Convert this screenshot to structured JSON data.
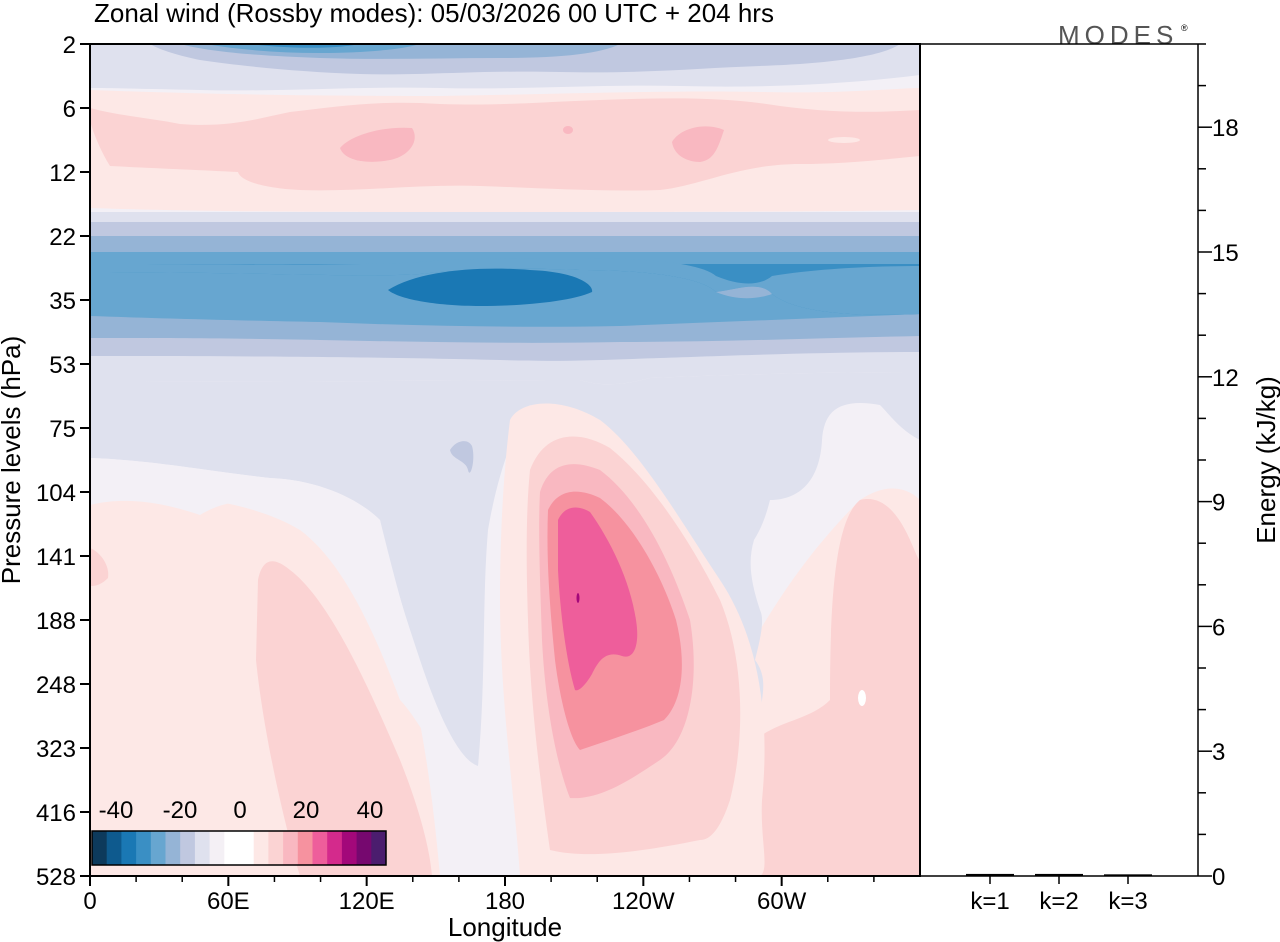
{
  "chart_data": {
    "type": "heatmap",
    "title": "Zonal wind (Rossby modes):  05/03/2026  00 UTC  + 204 hrs",
    "logo": "MODES",
    "logo_mark": "®",
    "xlabel": "Longitude",
    "ylabel": "Pressure levels (hPa)",
    "y2label": "Energy (kJ/kg)",
    "x_ticks": [
      "0",
      "60E",
      "120E",
      "180",
      "120W",
      "60W"
    ],
    "y_ticks": [
      "2",
      "6",
      "12",
      "22",
      "35",
      "53",
      "75",
      "104",
      "141",
      "188",
      "248",
      "323",
      "416",
      "528"
    ],
    "energy_ticks": [
      "0",
      "3",
      "6",
      "9",
      "12",
      "15",
      "18"
    ],
    "energy_range": [
      0,
      20
    ],
    "energy_bars": {
      "categories": [
        "k=1",
        "k=2",
        "k=3"
      ],
      "values": [
        0.05,
        0.05,
        0.04
      ]
    },
    "colorbar": {
      "labels": [
        "-40",
        "-20",
        "0",
        "20",
        "40"
      ],
      "colors": [
        "#0d3a5c",
        "#0e5a8e",
        "#1a78b4",
        "#3a8fc4",
        "#67a6d0",
        "#95b4d6",
        "#c0c8e0",
        "#dfe1ee",
        "#f4f0f5",
        "#ffffff",
        "#ffffff",
        "#fde8e6",
        "#fbd3d3",
        "#f9b8c1",
        "#f6929f",
        "#ee5e9b",
        "#d42a8c",
        "#a3087a",
        "#76086f",
        "#4b1d6e"
      ]
    },
    "wind_field": {
      "units": "m/s",
      "contour_interval": 5,
      "features": [
        {
          "name": "upper-easterlies-top",
          "level_hPa": 2,
          "lon_range": [
            "0",
            "60W"
          ],
          "value": -25
        },
        {
          "name": "westerly-band",
          "level_hPa": 9,
          "lon_range": [
            "0",
            "60W"
          ],
          "value": 10
        },
        {
          "name": "easterly-jet-core",
          "level_hPa": 32,
          "lon_range": [
            "120E",
            "120W"
          ],
          "value": -30
        },
        {
          "name": "westerly-max",
          "level_hPa": 188,
          "lon_range": [
            "180",
            "120W"
          ],
          "value": 30
        },
        {
          "name": "lower-westerlies",
          "level_hPa": 323,
          "lon_range": [
            "60E",
            "120E"
          ],
          "value": 10
        }
      ]
    }
  }
}
